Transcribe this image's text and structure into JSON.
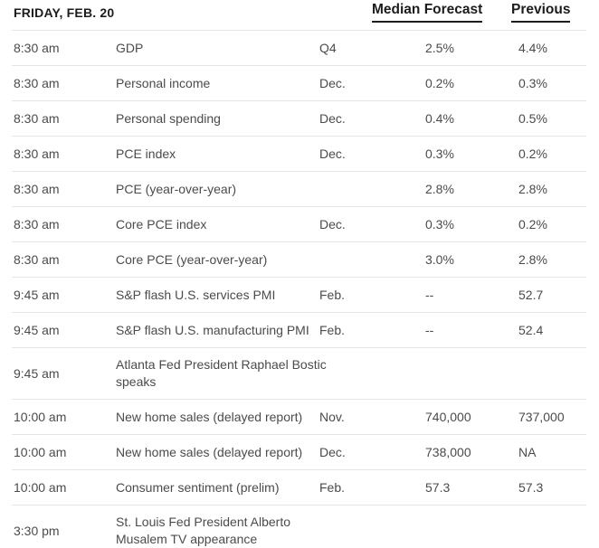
{
  "header": {
    "day_title": "FRIDAY, FEB. 20",
    "forecast_label": "Median Forecast",
    "previous_label": "Previous"
  },
  "colors": {
    "header_text": "#1c1c1c",
    "body_text": "#4b4b4b",
    "rule": "#e4e4e4"
  },
  "rows": [
    {
      "time": "8:30 am",
      "event": [
        "GDP"
      ],
      "period": "Q4",
      "forecast": "2.5%",
      "previous": "4.4%"
    },
    {
      "time": "8:30 am",
      "event": [
        "Personal income"
      ],
      "period": "Dec.",
      "forecast": "0.2%",
      "previous": "0.3%"
    },
    {
      "time": "8:30 am",
      "event": [
        "Personal spending"
      ],
      "period": "Dec.",
      "forecast": "0.4%",
      "previous": "0.5%"
    },
    {
      "time": "8:30 am",
      "event": [
        "PCE index"
      ],
      "period": "Dec.",
      "forecast": "0.3%",
      "previous": "0.2%"
    },
    {
      "time": "8:30 am",
      "event": [
        "PCE (year-over-year)"
      ],
      "period": "",
      "forecast": "2.8%",
      "previous": "2.8%"
    },
    {
      "time": "8:30 am",
      "event": [
        "Core PCE index"
      ],
      "period": "Dec.",
      "forecast": "0.3%",
      "previous": "0.2%"
    },
    {
      "time": "8:30 am",
      "event": [
        "Core PCE (year-over-year)"
      ],
      "period": "",
      "forecast": "3.0%",
      "previous": "2.8%"
    },
    {
      "time": "9:45 am",
      "event": [
        "S&P flash U.S. services PMI"
      ],
      "period": "Feb.",
      "forecast": "--",
      "previous": "52.7"
    },
    {
      "time": "9:45 am",
      "event": [
        "S&P flash U.S. manufacturing PMI"
      ],
      "period": "Feb.",
      "forecast": "--",
      "previous": "52.4"
    },
    {
      "time": "9:45 am",
      "event": [
        "Atlanta Fed President Raphael Bostic",
        "speaks"
      ],
      "period": "",
      "forecast": "",
      "previous": ""
    },
    {
      "time": "10:00 am",
      "event": [
        "New home sales (delayed report)"
      ],
      "period": "Nov.",
      "forecast": "740,000",
      "previous": "737,000"
    },
    {
      "time": "10:00 am",
      "event": [
        "New home sales (delayed report)"
      ],
      "period": "Dec.",
      "forecast": "738,000",
      "previous": "NA"
    },
    {
      "time": "10:00 am",
      "event": [
        "Consumer sentiment (prelim)"
      ],
      "period": "Feb.",
      "forecast": "57.3",
      "previous": "57.3"
    },
    {
      "time": "3:30 pm",
      "event": [
        "St. Louis Fed President Alberto",
        "Musalem TV appearance"
      ],
      "period": "",
      "forecast": "",
      "previous": ""
    }
  ]
}
